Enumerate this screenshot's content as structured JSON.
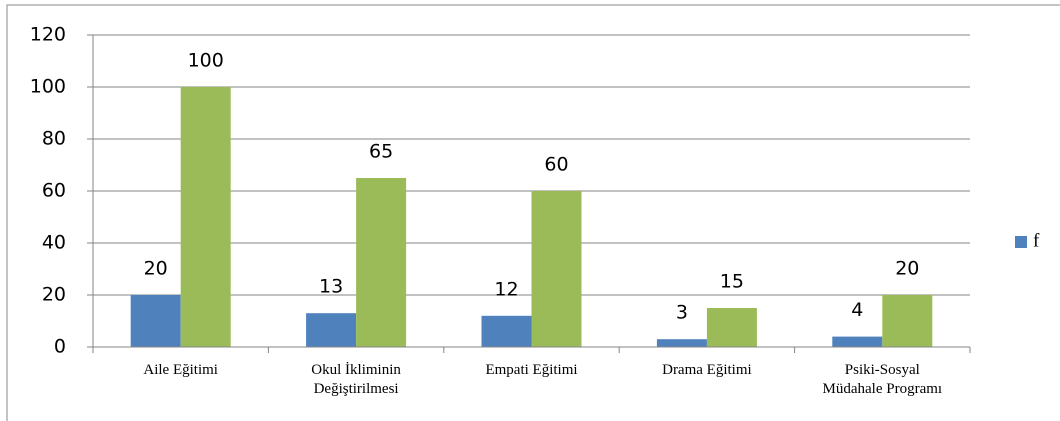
{
  "chart_data": {
    "type": "bar",
    "categories": [
      "Aile Eğitimi",
      "Okul İkliminin Değiştirilmesi",
      "Empati Eğitimi",
      "Drama Eğitimi",
      "Psiki-Sosyal Müdahale Programı"
    ],
    "series": [
      {
        "name": "f",
        "color": "#4f81bd",
        "values": [
          20,
          13,
          12,
          3,
          4
        ]
      },
      {
        "color": "#9bbb59",
        "values": [
          100,
          65,
          60,
          15,
          20
        ]
      }
    ],
    "ylim": [
      0,
      120
    ],
    "yticks": [
      0,
      20,
      40,
      60,
      80,
      100,
      120
    ],
    "grid": true,
    "legend": "right"
  }
}
